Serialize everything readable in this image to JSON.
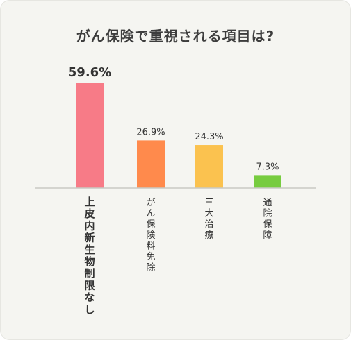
{
  "chart_data": {
    "type": "bar",
    "title": "がん保険で重視される項目は?",
    "categories": [
      "上皮内新生物制限なし",
      "がん保険料免除",
      "三大治療",
      "通院保障"
    ],
    "values": [
      59.6,
      26.9,
      24.3,
      7.3
    ],
    "value_labels": [
      "59.6%",
      "26.9%",
      "24.3%",
      "7.3%"
    ],
    "colors": [
      "#f77b87",
      "#ff8a4c",
      "#fbc24f",
      "#77cc3f"
    ],
    "highlight_index": 0,
    "xlabel": "",
    "ylabel": "",
    "ylim": [
      0,
      60
    ],
    "grid": false,
    "legend": "none"
  }
}
